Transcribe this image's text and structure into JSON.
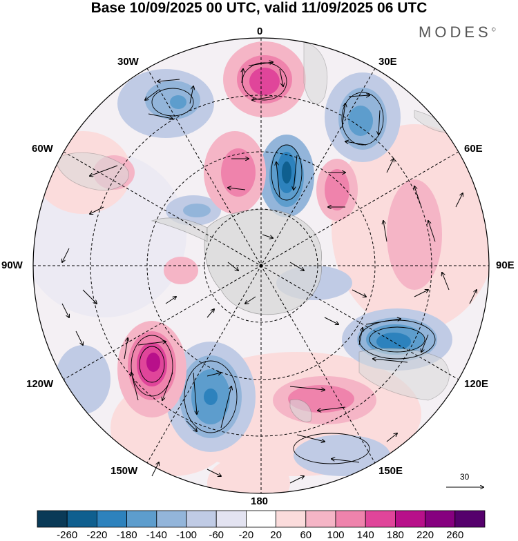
{
  "title": "Base 10/09/2025 00 UTC, valid 11/09/2025 06 UTC",
  "brand": "MODES",
  "brand_mark": "©",
  "longitude_labels": {
    "top": "0",
    "bottom": "180",
    "left": "90W",
    "right": "90E",
    "l30": "30W",
    "l60": "60W",
    "l120": "120W",
    "l150": "150W",
    "r30": "30E",
    "r60": "60E",
    "r120": "120E",
    "r150": "150E"
  },
  "wind_scale_label": "30",
  "colorbar": {
    "labels": [
      "-260",
      "-220",
      "-180",
      "-140",
      "-100",
      "-60",
      "-20",
      "20",
      "60",
      "100",
      "140",
      "180",
      "220",
      "260"
    ],
    "colors": [
      "#0a3a57",
      "#0f5f8f",
      "#2d82bd",
      "#5d9dcd",
      "#93b5da",
      "#c0cbe5",
      "#e3e3f1",
      "#ffffff",
      "#fbdcdc",
      "#f5b5c6",
      "#ef83ac",
      "#e0459a",
      "#b8108a",
      "#86007f",
      "#55006c"
    ]
  },
  "field_colors": {
    "land": "#d9d9d9",
    "coast": "#8a8a8a",
    "grid": "#000000",
    "arrows": "#000000"
  }
}
